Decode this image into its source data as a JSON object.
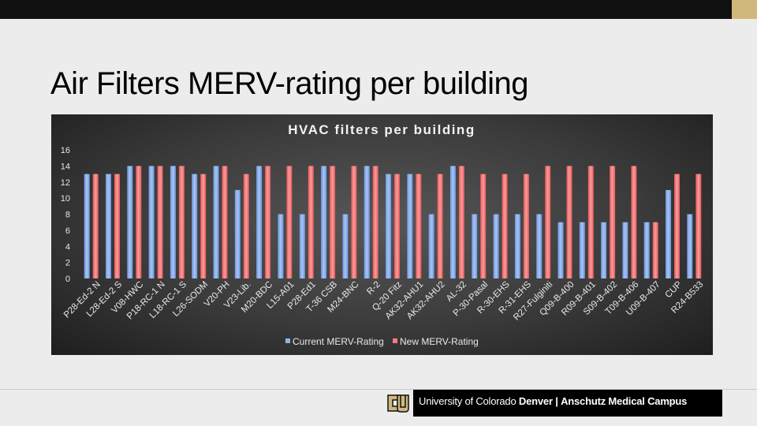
{
  "slide": {
    "title": "Air Filters MERV-rating per building"
  },
  "footer": {
    "university": "University of Colorado",
    "denver": "Denver",
    "separator": "|",
    "campus": "Anschutz Medical Campus"
  },
  "colors": {
    "current": "#8fb2ec",
    "new": "#f27c7c",
    "accent": "#cfb87c"
  },
  "chart_data": {
    "type": "bar",
    "title": "HVAC filters per building",
    "xlabel": "",
    "ylabel": "",
    "ylim": [
      0,
      16
    ],
    "yticks": [
      0,
      2,
      4,
      6,
      8,
      10,
      12,
      14,
      16
    ],
    "grid": false,
    "legend": "bottom",
    "categories": [
      "P28-Ed-2 N",
      "L28-Ed-2 S",
      "V08-HWC",
      "P18-RC-1 N",
      "L18-RC-1 S",
      "L26-SODM",
      "V20-PH",
      "V23-Lib.",
      "M20-BDC",
      "L15-A01",
      "P28-Ed1",
      "T-36 CSB",
      "M24-BNC",
      "R-2",
      "Q-20 Fitz",
      "AK32-AHU1",
      "AK32-AHU2",
      "AL-32",
      "P-30-Pasal",
      "R-30-EHS",
      "R-31-EHS",
      "R27-Fulginiti",
      "Q09-B-400",
      "R09-B-401",
      "S09-B-402",
      "T09-B-406",
      "U09-B-407",
      "CUP",
      "R24-B533"
    ],
    "series": [
      {
        "name": "Current MERV-Rating",
        "values": [
          13,
          13,
          14,
          14,
          14,
          13,
          14,
          11,
          14,
          8,
          8,
          14,
          8,
          14,
          13,
          13,
          8,
          14,
          8,
          8,
          8,
          8,
          7,
          7,
          7,
          7,
          7,
          11,
          8
        ]
      },
      {
        "name": "New MERV-Rating",
        "values": [
          13,
          13,
          14,
          14,
          14,
          13,
          14,
          13,
          14,
          14,
          14,
          14,
          14,
          14,
          13,
          13,
          13,
          14,
          13,
          13,
          13,
          14,
          14,
          14,
          14,
          14,
          7,
          13,
          13
        ]
      }
    ]
  }
}
